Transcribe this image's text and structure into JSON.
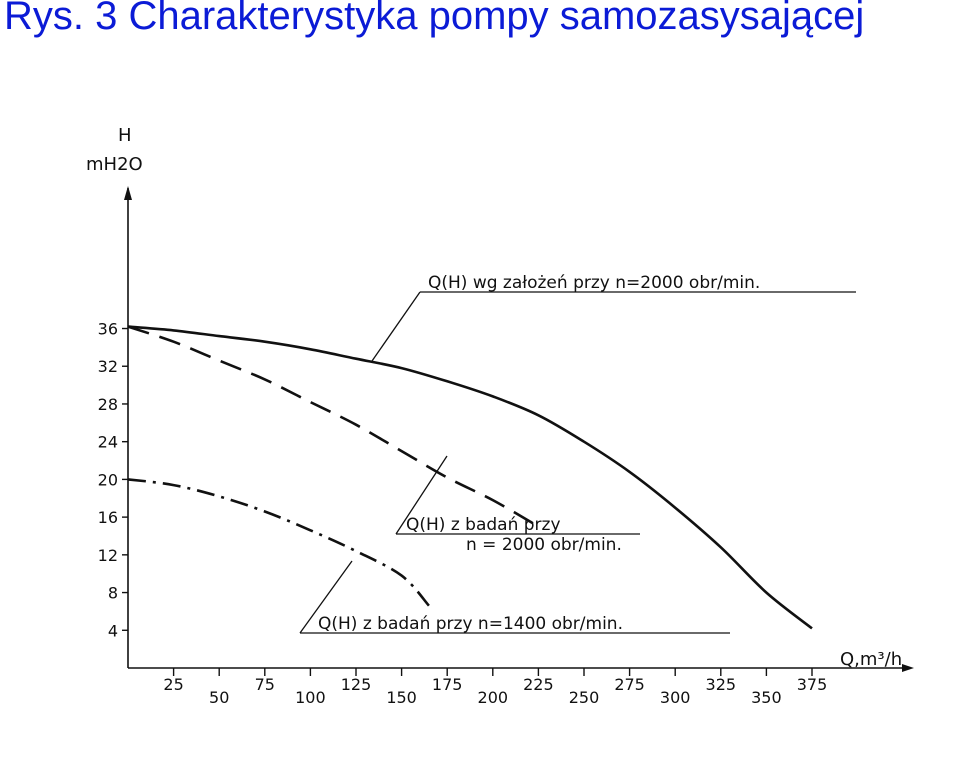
{
  "title": "Rys. 3 Charakterystyka pompy samozasysającej",
  "chart_data": {
    "type": "line",
    "ylabel_top": "H",
    "ylabel_unit": "mH2O",
    "xlabel": "Q,m³/h",
    "xlim": [
      0,
      400
    ],
    "ylim": [
      0,
      44
    ],
    "y_ticks": [
      4,
      8,
      12,
      16,
      20,
      24,
      28,
      32,
      36
    ],
    "x_ticks_upper": [
      25,
      75,
      125,
      175,
      225,
      275,
      325,
      375
    ],
    "x_ticks_lower": [
      50,
      100,
      150,
      200,
      250,
      300,
      350
    ],
    "grid": false,
    "series": [
      {
        "name": "Q(H) wg założeń przy n=2000 obr/min.",
        "style": "solid",
        "x": [
          0,
          25,
          50,
          75,
          100,
          125,
          150,
          175,
          200,
          225,
          250,
          275,
          300,
          325,
          350,
          375
        ],
        "y": [
          36.2,
          35.8,
          35.2,
          34.6,
          33.8,
          32.8,
          31.8,
          30.4,
          28.8,
          26.8,
          24.0,
          20.8,
          17.0,
          12.8,
          8.0,
          4.2
        ]
      },
      {
        "name": "Q(H) z badań przy n = 2000 obr/min.",
        "style": "dashed",
        "x": [
          0,
          25,
          50,
          75,
          100,
          125,
          150,
          175,
          200,
          225
        ],
        "y": [
          36.2,
          34.6,
          32.6,
          30.6,
          28.2,
          25.8,
          23.0,
          20.2,
          17.8,
          15.0
        ]
      },
      {
        "name": "Q(H) z badań przy n=1400 obr/min.",
        "style": "dash-dot",
        "x": [
          0,
          25,
          50,
          75,
          100,
          125,
          150,
          165
        ],
        "y": [
          20.0,
          19.4,
          18.2,
          16.6,
          14.6,
          12.4,
          9.8,
          6.6
        ]
      }
    ],
    "annotations": [
      {
        "text": "Q(H) wg założeń przy n=2000 obr/min."
      },
      {
        "text_line1": "Q(H) z badań przy",
        "text_line2": "n = 2000 obr/min."
      },
      {
        "text": "Q(H) z badań przy n=1400 obr/min."
      }
    ]
  }
}
